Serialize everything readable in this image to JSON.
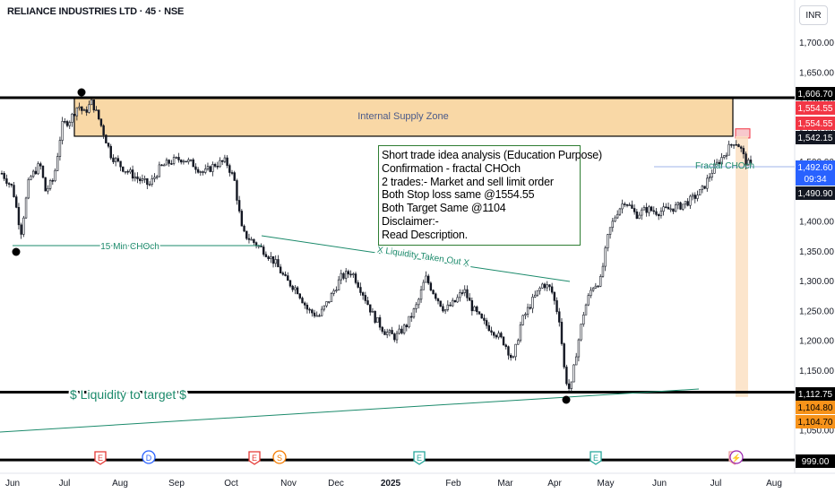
{
  "header": {
    "title": "RELIANCE INDUSTRIES LTD · 45 · NSE",
    "currency": "INR"
  },
  "chart_data": {
    "type": "candlestick",
    "symbol": "RELIANCE INDUSTRIES LTD",
    "interval": "45",
    "exchange": "NSE",
    "ylim": [
      1040,
      1745
    ],
    "y_ticks": [
      "1,700.00",
      "1,650.00",
      "1,600.00",
      "1,550.00",
      "1,500.00",
      "1,450.00",
      "1,400.00",
      "1,350.00",
      "1,300.00",
      "1,250.00",
      "1,200.00",
      "1,150.00",
      "1,100.00",
      "1,050.00"
    ],
    "x_ticks": [
      "Jun",
      "Jul",
      "Aug",
      "Sep",
      "Oct",
      "Nov",
      "Dec",
      "2025",
      "Feb",
      "Mar",
      "Apr",
      "May",
      "Jun",
      "Jul",
      "Aug"
    ],
    "price_path": [
      {
        "t": 0,
        "p": 1480
      },
      {
        "t": 2,
        "p": 1455
      },
      {
        "t": 3.5,
        "p": 1380
      },
      {
        "t": 5,
        "p": 1470
      },
      {
        "t": 7,
        "p": 1495
      },
      {
        "t": 8,
        "p": 1450
      },
      {
        "t": 9.5,
        "p": 1470
      },
      {
        "t": 11,
        "p": 1560
      },
      {
        "t": 12.5,
        "p": 1570
      },
      {
        "t": 14,
        "p": 1595
      },
      {
        "t": 15,
        "p": 1580
      },
      {
        "t": 16.5,
        "p": 1600
      },
      {
        "t": 18,
        "p": 1565
      },
      {
        "t": 20,
        "p": 1510
      },
      {
        "t": 22,
        "p": 1490
      },
      {
        "t": 25,
        "p": 1470
      },
      {
        "t": 27,
        "p": 1460
      },
      {
        "t": 29,
        "p": 1490
      },
      {
        "t": 31,
        "p": 1500
      },
      {
        "t": 33,
        "p": 1505
      },
      {
        "t": 35,
        "p": 1495
      },
      {
        "t": 37,
        "p": 1480
      },
      {
        "t": 39,
        "p": 1495
      },
      {
        "t": 41,
        "p": 1500
      },
      {
        "t": 42.5,
        "p": 1470
      },
      {
        "t": 44,
        "p": 1380
      },
      {
        "t": 46,
        "p": 1365
      },
      {
        "t": 48,
        "p": 1350
      },
      {
        "t": 50,
        "p": 1330
      },
      {
        "t": 52,
        "p": 1300
      },
      {
        "t": 54,
        "p": 1285
      },
      {
        "t": 56,
        "p": 1250
      },
      {
        "t": 58,
        "p": 1240
      },
      {
        "t": 60,
        "p": 1270
      },
      {
        "t": 62,
        "p": 1305
      },
      {
        "t": 64,
        "p": 1315
      },
      {
        "t": 66,
        "p": 1280
      },
      {
        "t": 68,
        "p": 1240
      },
      {
        "t": 70,
        "p": 1215
      },
      {
        "t": 72,
        "p": 1205
      },
      {
        "t": 74,
        "p": 1225
      },
      {
        "t": 76,
        "p": 1260
      },
      {
        "t": 77.5,
        "p": 1305
      },
      {
        "t": 79,
        "p": 1280
      },
      {
        "t": 81,
        "p": 1250
      },
      {
        "t": 83,
        "p": 1265
      },
      {
        "t": 84.5,
        "p": 1285
      },
      {
        "t": 86,
        "p": 1255
      },
      {
        "t": 88,
        "p": 1230
      },
      {
        "t": 90,
        "p": 1215
      },
      {
        "t": 92,
        "p": 1195
      },
      {
        "t": 93.5,
        "p": 1165
      },
      {
        "t": 95,
        "p": 1230
      },
      {
        "t": 97,
        "p": 1265
      },
      {
        "t": 99,
        "p": 1295
      },
      {
        "t": 100.5,
        "p": 1285
      },
      {
        "t": 102,
        "p": 1235
      },
      {
        "t": 103,
        "p": 1140
      },
      {
        "t": 104,
        "p": 1112
      },
      {
        "t": 105,
        "p": 1175
      },
      {
        "t": 106.5,
        "p": 1250
      },
      {
        "t": 108,
        "p": 1290
      },
      {
        "t": 109.5,
        "p": 1300
      },
      {
        "t": 111,
        "p": 1380
      },
      {
        "t": 112.5,
        "p": 1415
      },
      {
        "t": 114,
        "p": 1435
      },
      {
        "t": 116,
        "p": 1410
      },
      {
        "t": 118,
        "p": 1420
      },
      {
        "t": 120,
        "p": 1415
      },
      {
        "t": 122,
        "p": 1420
      },
      {
        "t": 124,
        "p": 1425
      },
      {
        "t": 126,
        "p": 1435
      },
      {
        "t": 128,
        "p": 1450
      },
      {
        "t": 130,
        "p": 1485
      },
      {
        "t": 132,
        "p": 1510
      },
      {
        "t": 134,
        "p": 1535
      },
      {
        "t": 135,
        "p": 1525
      },
      {
        "t": 136,
        "p": 1500
      },
      {
        "t": 137,
        "p": 1492
      }
    ],
    "horizontal_lines": [
      {
        "label": "1,606.70",
        "value": 1606.7,
        "color": "#000000"
      },
      {
        "label": "1,112.75",
        "value": 1112.75,
        "color": "#000000"
      },
      {
        "label": "999.00",
        "value": 999.0,
        "color": "#000000"
      }
    ],
    "zone": {
      "name": "Internal Supply Zone",
      "top": 1606.7,
      "bottom": 1542.15,
      "color": "#f9d8a6"
    },
    "annotations": [
      {
        "text": "15 Min CHOch",
        "color": "#1b8a6b"
      },
      {
        "text": "X Liquidity Taken Out X",
        "color": "#1b8a6b"
      },
      {
        "text": "$ Liquidity to target $",
        "color": "#1b8a6b"
      },
      {
        "text": "Fractal CHOch",
        "color": "#1b8a6b"
      }
    ],
    "price_labels": [
      {
        "text": "1,606.70",
        "bg": "#000000",
        "fg": "#ffffff"
      },
      {
        "text": "1,554.55",
        "bg": "#f23645",
        "fg": "#ffffff"
      },
      {
        "text": "1,554.55",
        "bg": "#f23645",
        "fg": "#ffffff"
      },
      {
        "text": "1,542.15",
        "bg": "#131722",
        "fg": "#ffffff"
      },
      {
        "text": "1,492.60",
        "bg": "#2962ff",
        "fg": "#ffffff"
      },
      {
        "text": "09:34",
        "bg": "#2962ff",
        "fg": "#ffffff"
      },
      {
        "text": "1,490.90",
        "bg": "#131722",
        "fg": "#ffffff"
      },
      {
        "text": "1,112.75",
        "bg": "#000000",
        "fg": "#ffffff"
      },
      {
        "text": "1,104.80",
        "bg": "#f7931a",
        "fg": "#000000"
      },
      {
        "text": "1,104.70",
        "bg": "#f7931a",
        "fg": "#000000"
      },
      {
        "text": "999.00",
        "bg": "#000000",
        "fg": "#ffffff"
      }
    ],
    "events": [
      {
        "type": "E",
        "color": "#e53935"
      },
      {
        "type": "D",
        "color": "#2962ff"
      },
      {
        "type": "E",
        "color": "#e53935"
      },
      {
        "type": "S",
        "color": "#f57c00"
      },
      {
        "type": "E",
        "color": "#26a69a"
      },
      {
        "type": "E",
        "color": "#26a69a"
      },
      {
        "type": "E",
        "color": "#ef9a9a"
      }
    ]
  },
  "note": {
    "lines": [
      "Short trade idea analysis (Education Purpose)",
      "Confirmation - fractal CHOch",
      "2 trades:- Market and sell limit order",
      "Both Stop loss same @1554.55",
      "Both Target Same @1104",
      "Disclaimer:-",
      "Read Description."
    ]
  },
  "colors": {
    "candle": "#131722",
    "zone": "#f9d8a6",
    "zone_border": "#000000",
    "green": "#1b8a6b",
    "target_box": "#fbe0c3",
    "stop_box": "#f8c8cc"
  }
}
